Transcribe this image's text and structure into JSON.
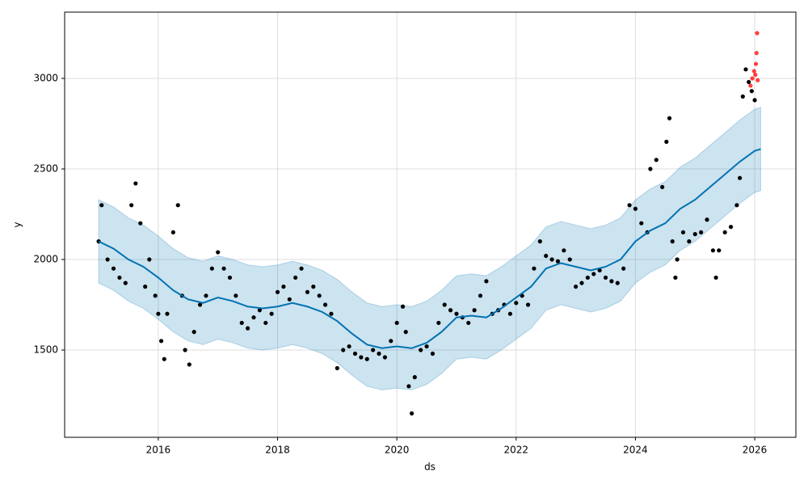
{
  "chart_data": {
    "type": "forecast",
    "xlabel": "ds",
    "ylabel": "y",
    "xlim": [
      2014.43,
      2026.69
    ],
    "ylim": [
      1018,
      3366
    ],
    "xticks": [
      2016,
      2018,
      2020,
      2022,
      2024,
      2026
    ],
    "yticks": [
      1500,
      2000,
      2500,
      3000
    ],
    "grid": true,
    "forecast": {
      "color": "#0072b2",
      "x": [
        2015.0,
        2015.25,
        2015.5,
        2015.75,
        2016.0,
        2016.25,
        2016.5,
        2016.75,
        2017.0,
        2017.25,
        2017.5,
        2017.75,
        2018.0,
        2018.25,
        2018.5,
        2018.75,
        2019.0,
        2019.25,
        2019.5,
        2019.75,
        2020.0,
        2020.25,
        2020.5,
        2020.75,
        2021.0,
        2021.25,
        2021.5,
        2021.75,
        2022.0,
        2022.25,
        2022.5,
        2022.75,
        2023.0,
        2023.25,
        2023.5,
        2023.75,
        2024.0,
        2024.25,
        2024.5,
        2024.75,
        2025.0,
        2025.25,
        2025.5,
        2025.75,
        2026.0,
        2026.1
      ],
      "values": [
        2100,
        2060,
        2000,
        1960,
        1900,
        1830,
        1780,
        1760,
        1790,
        1770,
        1740,
        1730,
        1740,
        1760,
        1740,
        1710,
        1660,
        1590,
        1530,
        1510,
        1520,
        1510,
        1540,
        1600,
        1680,
        1690,
        1680,
        1730,
        1790,
        1850,
        1950,
        1980,
        1960,
        1940,
        1960,
        2000,
        2100,
        2160,
        2200,
        2280,
        2330,
        2400,
        2470,
        2540,
        2600,
        2610
      ],
      "lower": [
        1870,
        1830,
        1770,
        1730,
        1670,
        1600,
        1550,
        1530,
        1560,
        1540,
        1510,
        1500,
        1510,
        1530,
        1510,
        1480,
        1430,
        1360,
        1300,
        1280,
        1290,
        1280,
        1310,
        1370,
        1450,
        1460,
        1450,
        1500,
        1560,
        1620,
        1720,
        1750,
        1730,
        1710,
        1730,
        1770,
        1870,
        1930,
        1970,
        2050,
        2100,
        2170,
        2240,
        2310,
        2370,
        2380
      ],
      "upper": [
        2330,
        2290,
        2230,
        2190,
        2130,
        2060,
        2010,
        1990,
        2020,
        2000,
        1970,
        1960,
        1970,
        1990,
        1970,
        1940,
        1890,
        1820,
        1760,
        1740,
        1750,
        1740,
        1770,
        1830,
        1910,
        1920,
        1910,
        1960,
        2020,
        2080,
        2180,
        2210,
        2190,
        2170,
        2190,
        2230,
        2330,
        2390,
        2430,
        2510,
        2560,
        2630,
        2700,
        2770,
        2830,
        2840
      ]
    },
    "observed": {
      "color": "#000000",
      "x": [
        2015.0,
        2015.05,
        2015.15,
        2015.25,
        2015.35,
        2015.45,
        2015.55,
        2015.62,
        2015.7,
        2015.78,
        2015.85,
        2015.95,
        2016.0,
        2016.05,
        2016.1,
        2016.15,
        2016.25,
        2016.33,
        2016.4,
        2016.45,
        2016.52,
        2016.6,
        2016.7,
        2016.8,
        2016.9,
        2017.0,
        2017.1,
        2017.2,
        2017.3,
        2017.4,
        2017.5,
        2017.6,
        2017.7,
        2017.8,
        2017.9,
        2018.0,
        2018.1,
        2018.2,
        2018.3,
        2018.4,
        2018.5,
        2018.6,
        2018.7,
        2018.8,
        2018.9,
        2019.0,
        2019.1,
        2019.2,
        2019.3,
        2019.4,
        2019.5,
        2019.6,
        2019.7,
        2019.8,
        2019.9,
        2020.0,
        2020.1,
        2020.15,
        2020.2,
        2020.25,
        2020.3,
        2020.4,
        2020.5,
        2020.6,
        2020.7,
        2020.8,
        2020.9,
        2021.0,
        2021.1,
        2021.2,
        2021.3,
        2021.4,
        2021.5,
        2021.6,
        2021.7,
        2021.8,
        2021.9,
        2022.0,
        2022.1,
        2022.2,
        2022.3,
        2022.4,
        2022.5,
        2022.6,
        2022.7,
        2022.8,
        2022.9,
        2023.0,
        2023.1,
        2023.2,
        2023.3,
        2023.4,
        2023.5,
        2023.6,
        2023.7,
        2023.8,
        2023.9,
        2024.0,
        2024.1,
        2024.2,
        2024.25,
        2024.35,
        2024.45,
        2024.52,
        2024.57,
        2024.62,
        2024.67,
        2024.7,
        2024.8,
        2024.9,
        2025.0,
        2025.1,
        2025.2,
        2025.3,
        2025.35,
        2025.4,
        2025.5,
        2025.6,
        2025.7,
        2025.75,
        2025.8,
        2025.85,
        2025.9,
        2025.95,
        2026.0
      ],
      "values": [
        2100,
        2300,
        2000,
        1950,
        1900,
        1870,
        2300,
        2420,
        2200,
        1850,
        2000,
        1800,
        1700,
        1550,
        1450,
        1700,
        2150,
        2300,
        1800,
        1500,
        1420,
        1600,
        1750,
        1800,
        1950,
        2040,
        1950,
        1900,
        1800,
        1650,
        1620,
        1680,
        1720,
        1650,
        1700,
        1820,
        1850,
        1780,
        1900,
        1950,
        1820,
        1850,
        1800,
        1750,
        1700,
        1400,
        1500,
        1520,
        1480,
        1460,
        1450,
        1500,
        1480,
        1460,
        1550,
        1650,
        1740,
        1600,
        1300,
        1150,
        1350,
        1500,
        1520,
        1480,
        1650,
        1750,
        1720,
        1700,
        1680,
        1650,
        1720,
        1800,
        1880,
        1700,
        1720,
        1750,
        1700,
        1760,
        1800,
        1750,
        1950,
        2100,
        2020,
        2000,
        1990,
        2050,
        2000,
        1850,
        1870,
        1900,
        1920,
        1940,
        1900,
        1880,
        1870,
        1950,
        2300,
        2280,
        2200,
        2150,
        2500,
        2550,
        2400,
        2650,
        2780,
        2100,
        1900,
        2000,
        2150,
        2100,
        2140,
        2150,
        2220,
        2050,
        1900,
        2050,
        2150,
        2180,
        2300,
        2450,
        2900,
        3050,
        2980,
        2930,
        2880
      ]
    },
    "recent": {
      "color": "#ff0000",
      "x": [
        2025.93,
        2025.96,
        2025.99,
        2026.01,
        2026.02,
        2026.03,
        2026.04,
        2026.05
      ],
      "values": [
        2960,
        3000,
        3040,
        3020,
        3080,
        3140,
        3250,
        2990
      ]
    }
  }
}
